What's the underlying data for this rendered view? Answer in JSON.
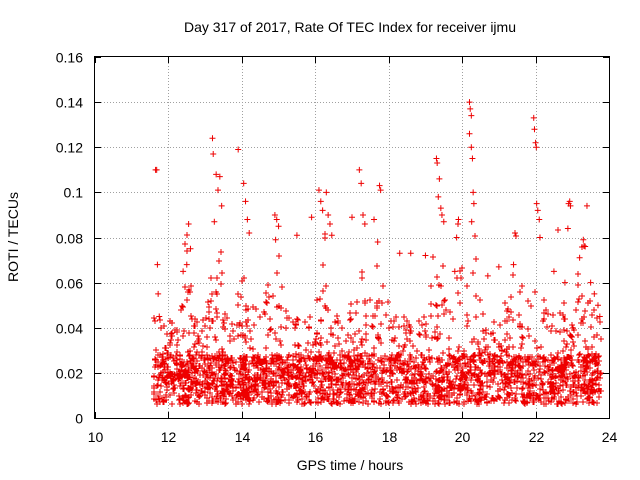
{
  "chart_data": {
    "type": "scatter",
    "title": "Day 317 of 2017, Rate Of TEC Index for receiver ijmu",
    "xlabel": "GPS time / hours",
    "ylabel": "ROTI / TECUs",
    "xlim": [
      10,
      24
    ],
    "ylim": [
      0,
      0.16
    ],
    "xticks": [
      10,
      12,
      14,
      16,
      18,
      20,
      22,
      24
    ],
    "yticks": [
      0,
      0.02,
      0.04,
      0.06,
      0.08,
      0.1,
      0.12,
      0.14,
      0.16
    ],
    "xtick_labels": [
      "10",
      "12",
      "14",
      "16",
      "18",
      "20",
      "22",
      "24"
    ],
    "ytick_labels": [
      "0",
      "0.02",
      "0.04",
      "0.06",
      "0.08",
      "0.1",
      "0.12",
      "0.14",
      "0.16"
    ],
    "grid": true,
    "marker": "+",
    "color": "#ee0000",
    "series": [
      {
        "name": "ROTI",
        "points": [
          [
            11.65,
            0.11
          ],
          [
            11.68,
            0.11
          ],
          [
            11.7,
            0.068
          ],
          [
            11.72,
            0.055
          ],
          [
            11.75,
            0.045
          ],
          [
            12.4,
            0.065
          ],
          [
            12.5,
            0.068
          ],
          [
            12.55,
            0.086
          ],
          [
            12.6,
            0.075
          ],
          [
            13.2,
            0.124
          ],
          [
            13.22,
            0.117
          ],
          [
            13.3,
            0.108
          ],
          [
            13.35,
            0.101
          ],
          [
            13.4,
            0.107
          ],
          [
            13.45,
            0.094
          ],
          [
            13.25,
            0.087
          ],
          [
            13.9,
            0.119
          ],
          [
            14.05,
            0.104
          ],
          [
            14.1,
            0.096
          ],
          [
            14.15,
            0.088
          ],
          [
            14.2,
            0.082
          ],
          [
            14.9,
            0.09
          ],
          [
            14.95,
            0.088
          ],
          [
            15.0,
            0.085
          ],
          [
            14.92,
            0.079
          ],
          [
            15.5,
            0.081
          ],
          [
            15.9,
            0.089
          ],
          [
            16.1,
            0.101
          ],
          [
            16.15,
            0.096
          ],
          [
            16.3,
            0.1
          ],
          [
            16.35,
            0.09
          ],
          [
            16.4,
            0.086
          ],
          [
            16.45,
            0.081
          ],
          [
            16.2,
            0.092
          ],
          [
            17.0,
            0.089
          ],
          [
            17.2,
            0.11
          ],
          [
            17.25,
            0.104
          ],
          [
            17.3,
            0.09
          ],
          [
            17.35,
            0.086
          ],
          [
            17.6,
            0.088
          ],
          [
            17.75,
            0.103
          ],
          [
            17.78,
            0.101
          ],
          [
            17.7,
            0.078
          ],
          [
            18.3,
            0.073
          ],
          [
            18.6,
            0.073
          ],
          [
            19.0,
            0.072
          ],
          [
            19.3,
            0.115
          ],
          [
            19.32,
            0.113
          ],
          [
            19.38,
            0.106
          ],
          [
            19.35,
            0.098
          ],
          [
            19.42,
            0.093
          ],
          [
            19.45,
            0.09
          ],
          [
            19.5,
            0.087
          ],
          [
            19.8,
            0.065
          ],
          [
            19.85,
            0.08
          ],
          [
            19.9,
            0.088
          ],
          [
            20.2,
            0.14
          ],
          [
            20.22,
            0.137
          ],
          [
            20.25,
            0.134
          ],
          [
            20.2,
            0.126
          ],
          [
            20.25,
            0.12
          ],
          [
            20.28,
            0.115
          ],
          [
            20.3,
            0.1
          ],
          [
            20.32,
            0.095
          ],
          [
            20.26,
            0.087
          ],
          [
            20.7,
            0.063
          ],
          [
            21.0,
            0.067
          ],
          [
            21.4,
            0.068
          ],
          [
            21.95,
            0.133
          ],
          [
            21.97,
            0.128
          ],
          [
            22.0,
            0.122
          ],
          [
            22.02,
            0.12
          ],
          [
            22.03,
            0.095
          ],
          [
            22.06,
            0.092
          ],
          [
            22.1,
            0.088
          ],
          [
            22.12,
            0.08
          ],
          [
            22.5,
            0.065
          ],
          [
            22.8,
            0.06
          ],
          [
            22.9,
            0.095
          ],
          [
            22.93,
            0.096
          ],
          [
            22.95,
            0.094
          ],
          [
            22.88,
            0.084
          ],
          [
            23.2,
            0.071
          ],
          [
            23.3,
            0.079
          ],
          [
            23.35,
            0.076
          ],
          [
            23.4,
            0.094
          ],
          [
            23.5,
            0.06
          ],
          [
            23.6,
            0.055
          ],
          [
            23.7,
            0.05
          ],
          [
            23.75,
            0.045
          ]
        ]
      }
    ]
  }
}
